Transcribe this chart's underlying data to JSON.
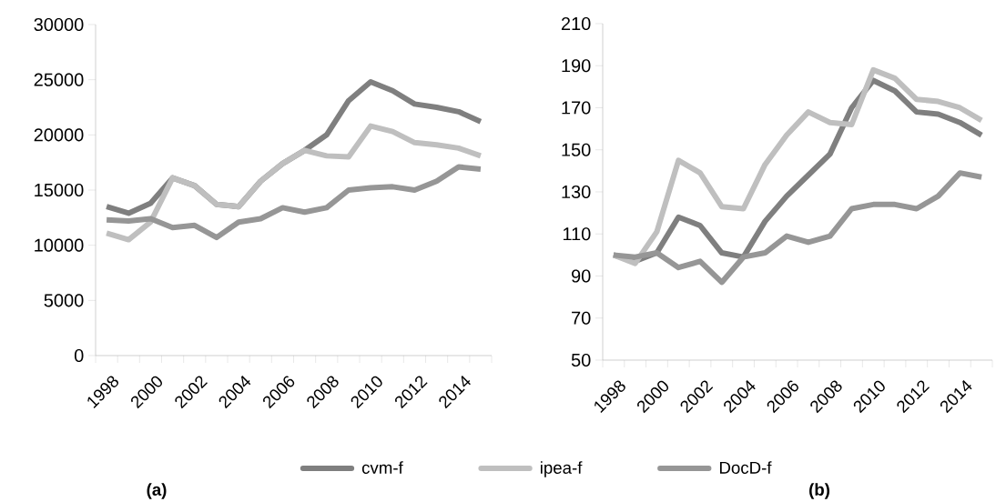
{
  "chart_data": [
    {
      "type": "line",
      "categories": [
        "1998",
        null,
        "2000",
        null,
        "2002",
        null,
        "2004",
        null,
        "2006",
        null,
        "2008",
        null,
        "2010",
        null,
        "2012",
        null,
        "2014",
        null
      ],
      "series": [
        {
          "name": "cvm-f",
          "color": "#7f7f7f",
          "values": [
            13500,
            12900,
            13800,
            16100,
            15400,
            13700,
            13500,
            15800,
            17400,
            18600,
            20000,
            23100,
            24800,
            24000,
            22800,
            22500,
            22100,
            21200
          ]
        },
        {
          "name": "ipea-f",
          "color": "#bfbfbf",
          "values": [
            11100,
            10500,
            12100,
            16100,
            15400,
            13700,
            13500,
            15800,
            17400,
            18600,
            18100,
            18000,
            20800,
            20300,
            19300,
            19100,
            18800,
            18100
          ]
        },
        {
          "name": "DocD-f",
          "color": "#969696",
          "values": [
            12300,
            12200,
            12400,
            11600,
            11800,
            10700,
            12100,
            12400,
            13400,
            13000,
            13400,
            15000,
            15200,
            15300,
            15000,
            15800,
            17100,
            16900
          ]
        }
      ],
      "ylim": [
        0,
        30000
      ],
      "yticks": [
        0,
        5000,
        10000,
        15000,
        20000,
        25000,
        30000
      ],
      "legend": "bottom",
      "annotations": [
        "(a)"
      ]
    },
    {
      "type": "line",
      "categories": [
        "1998",
        null,
        "2000",
        null,
        "2002",
        null,
        "2004",
        null,
        "2006",
        null,
        "2008",
        null,
        "2010",
        null,
        "2012",
        null,
        "2014",
        null
      ],
      "series": [
        {
          "color": "#7f7f7f",
          "values": [
            100,
            97,
            101,
            118,
            114,
            101,
            99,
            116,
            128,
            138,
            148,
            170,
            183,
            178,
            168,
            167,
            163,
            157
          ]
        },
        {
          "color": "#bfbfbf",
          "values": [
            100,
            96,
            111,
            145,
            139,
            123,
            122,
            143,
            157,
            168,
            163,
            162,
            188,
            184,
            174,
            173,
            170,
            164
          ]
        },
        {
          "color": "#969696",
          "values": [
            100,
            99,
            101,
            94,
            97,
            87,
            99,
            101,
            109,
            106,
            109,
            122,
            124,
            124,
            122,
            128,
            139,
            137
          ]
        }
      ],
      "ylim": [
        50,
        210
      ],
      "yticks": [
        50,
        70,
        90,
        110,
        130,
        150,
        170,
        190,
        210
      ],
      "legend": false,
      "annotations": [
        "(b)"
      ]
    }
  ]
}
